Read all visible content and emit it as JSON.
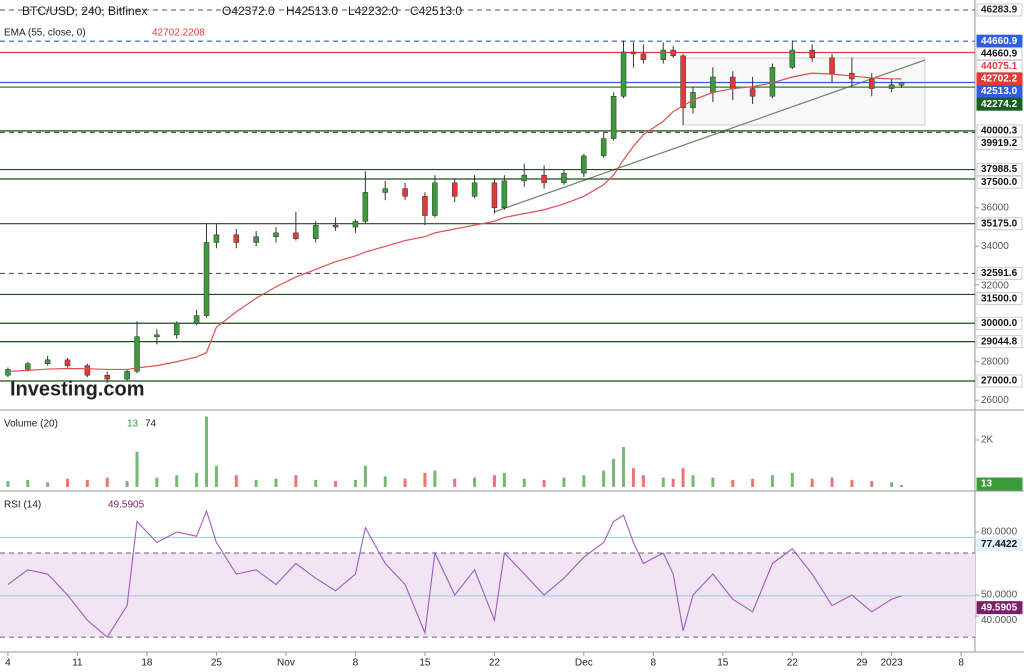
{
  "chart_data": {
    "type": "candlestick",
    "title": "BTC/USD, 240, Bitfinex",
    "ohlc_labels": [
      "O42372.0",
      "H42513.0",
      "L42232.0",
      "C42513.0"
    ],
    "ema_label": "EMA (55, close, 0)",
    "ema_value": "42702.2208",
    "watermark": "Investing.com",
    "x": [
      0,
      2,
      4,
      6,
      8,
      10,
      12,
      13,
      15,
      17,
      19,
      20,
      21,
      23,
      25,
      27,
      29,
      31,
      33,
      35,
      36,
      38,
      40,
      42,
      43,
      45,
      47,
      49,
      50,
      52,
      54,
      56,
      58,
      60,
      61,
      62,
      63,
      64,
      66,
      67,
      68,
      69,
      71,
      73,
      75,
      77,
      79,
      81,
      83,
      85,
      87,
      89,
      90
    ],
    "open": [
      27300,
      27600,
      27900,
      28100,
      27800,
      27300,
      27100,
      27500,
      29300,
      29400,
      30000,
      30400,
      34200,
      34600,
      34200,
      34500,
      34700,
      34400,
      35100,
      35000,
      35300,
      36800,
      37000,
      36600,
      35600,
      37300,
      36600,
      37300,
      36000,
      37400,
      37700,
      37300,
      37800,
      38700,
      39600,
      41800,
      44100,
      44000,
      43700,
      44200,
      43900,
      41200,
      42000,
      42800,
      42200,
      41800,
      43300,
      44200,
      43800,
      43000,
      42700,
      42200,
      42372
    ],
    "high": [
      27700,
      28000,
      28300,
      28200,
      27900,
      27500,
      27600,
      30100,
      29700,
      30100,
      30700,
      35200,
      35200,
      34900,
      34800,
      35000,
      35800,
      35300,
      35500,
      35400,
      37900,
      37400,
      37300,
      36800,
      37700,
      37500,
      37700,
      37500,
      37700,
      38300,
      38200,
      38000,
      38800,
      39900,
      42000,
      44700,
      44600,
      44500,
      44600,
      44400,
      44000,
      42300,
      43300,
      43100,
      42800,
      43500,
      44700,
      44500,
      44000,
      43800,
      43000,
      42700,
      42513
    ],
    "low": [
      27200,
      27500,
      27800,
      27700,
      27200,
      26900,
      27000,
      27400,
      28900,
      29200,
      29900,
      30300,
      33900,
      33900,
      34000,
      34200,
      34300,
      34200,
      34800,
      34700,
      35200,
      36400,
      36400,
      35100,
      35500,
      36300,
      36500,
      35700,
      35900,
      37100,
      37000,
      37200,
      37600,
      38600,
      39500,
      41700,
      43300,
      43500,
      43500,
      43800,
      40300,
      40900,
      41500,
      41600,
      41400,
      41700,
      43200,
      43600,
      42500,
      42300,
      41800,
      42000,
      42232
    ],
    "close": [
      27600,
      27900,
      28100,
      27800,
      27300,
      27100,
      27500,
      29300,
      29400,
      30000,
      30400,
      34200,
      34600,
      34200,
      34500,
      34700,
      34400,
      35100,
      35000,
      35300,
      36800,
      37000,
      36600,
      35600,
      37300,
      36600,
      37300,
      36000,
      37400,
      37700,
      37300,
      37800,
      38700,
      39600,
      41800,
      44100,
      44000,
      43700,
      44200,
      43900,
      41200,
      42000,
      42800,
      42200,
      41800,
      43300,
      44200,
      43800,
      43000,
      42700,
      42200,
      42400,
      42513
    ],
    "ema": [
      27500,
      27550,
      27620,
      27650,
      27640,
      27600,
      27600,
      27680,
      27800,
      28000,
      28250,
      28480,
      29800,
      30600,
      31300,
      31900,
      32400,
      32800,
      33200,
      33500,
      33700,
      34000,
      34300,
      34500,
      34700,
      34900,
      35100,
      35300,
      35500,
      35700,
      35900,
      36200,
      36600,
      37200,
      37700,
      38500,
      39200,
      39800,
      40500,
      41000,
      41300,
      41600,
      42000,
      42200,
      42300,
      42500,
      42800,
      43000,
      42950,
      42850,
      42750,
      42700,
      42702
    ],
    "up_color": "#3b9b3b",
    "down_color": "#e23a3a",
    "ema_color": "#e05050",
    "xlim": [
      -0.8,
      97.4
    ],
    "xticks": [
      {
        "value": 0,
        "label": "4"
      },
      {
        "value": 7,
        "label": "11"
      },
      {
        "value": 14,
        "label": "18"
      },
      {
        "value": 21,
        "label": "25"
      },
      {
        "value": 28,
        "label": "Nov"
      },
      {
        "value": 35,
        "label": "8"
      },
      {
        "value": 42,
        "label": "15"
      },
      {
        "value": 49,
        "label": "22"
      },
      {
        "value": 58,
        "label": "Dec"
      },
      {
        "value": 65,
        "label": "8"
      },
      {
        "value": 72,
        "label": "15"
      },
      {
        "value": 79,
        "label": "22"
      },
      {
        "value": 86,
        "label": "29"
      },
      {
        "value": 89,
        "label": "2023"
      },
      {
        "value": 96,
        "label": "8"
      }
    ],
    "ylim": [
      25493,
      46802
    ],
    "yticks": [
      36000,
      34000,
      32000,
      28000,
      26000
    ],
    "levels": [
      {
        "value": 46283.9,
        "label": "46283.9",
        "color": "#777",
        "dash": true,
        "line": true,
        "bg": "#fff",
        "fg": "#222"
      },
      {
        "value": 44660.9,
        "label": "44660.9",
        "color": "#2f5fe0",
        "dash": true,
        "line": true,
        "bg": "#2f5fe0",
        "fg": "#fff"
      },
      {
        "value": 44660.9,
        "label": "44660.9",
        "color": "#222",
        "dash": false,
        "line": false,
        "bg": "#fff",
        "fg": "#111"
      },
      {
        "value": 44075.1,
        "label": "44075.1",
        "color": "#e23a3a",
        "dash": false,
        "line": true,
        "bg": "#fff",
        "fg": "#e23a3a"
      },
      {
        "value": 42702.2,
        "label": "42702.2",
        "color": "#e05050",
        "dash": false,
        "line": false,
        "bg": "#e23a3a",
        "fg": "#fff"
      },
      {
        "value": 42513.0,
        "label": "42513.0",
        "color": "#2f5fe0",
        "dash": false,
        "line": true,
        "bg": "#2f5fe0",
        "fg": "#fff"
      },
      {
        "value": 42274.2,
        "label": "42274.2",
        "color": "#2e7d32",
        "dash": false,
        "line": true,
        "bg": "#1b5e20",
        "fg": "#fff"
      },
      {
        "value": 40000.3,
        "label": "40000.3",
        "color": "#1b4d1b",
        "dash": false,
        "line": true,
        "bg": "#fff",
        "fg": "#111"
      },
      {
        "value": 39919.2,
        "label": "39919.2",
        "color": "#555",
        "dash": true,
        "line": true,
        "bg": "#fff",
        "fg": "#111"
      },
      {
        "value": 37988.5,
        "label": "37988.5",
        "color": "#1b4d1b",
        "dash": false,
        "line": true,
        "bg": "#fff",
        "fg": "#111"
      },
      {
        "value": 37500.0,
        "label": "37500.0",
        "color": "#1b4d1b",
        "dash": false,
        "line": true,
        "bg": "#fff",
        "fg": "#111"
      },
      {
        "value": 35175.0,
        "label": "35175.0",
        "color": "#1b4d1b",
        "dash": false,
        "line": true,
        "bg": "#fff",
        "fg": "#111"
      },
      {
        "value": 32591.6,
        "label": "32591.6",
        "color": "#555",
        "dash": true,
        "line": true,
        "bg": "#fff",
        "fg": "#111"
      },
      {
        "value": 31500.0,
        "label": "31500.0",
        "color": "#1b4d1b",
        "dash": false,
        "line": true,
        "bg": "#fff",
        "fg": "#111"
      },
      {
        "value": 30000.0,
        "label": "30000.0",
        "color": "#1b4d1b",
        "dash": false,
        "line": true,
        "bg": "#fff",
        "fg": "#111"
      },
      {
        "value": 29044.8,
        "label": "29044.8",
        "color": "#1b4d1b",
        "dash": false,
        "line": true,
        "bg": "#fff",
        "fg": "#111"
      },
      {
        "value": 27000.0,
        "label": "27000.0",
        "color": "#1b4d1b",
        "dash": false,
        "line": true,
        "bg": "#fff",
        "fg": "#111"
      }
    ],
    "volume": {
      "title": "Volume (20)",
      "up_label": "13",
      "down_label": "74",
      "values": [
        250,
        300,
        200,
        350,
        300,
        400,
        250,
        1500,
        400,
        500,
        600,
        3000,
        900,
        500,
        300,
        350,
        500,
        300,
        250,
        300,
        900,
        450,
        350,
        600,
        700,
        350,
        400,
        500,
        600,
        350,
        300,
        400,
        500,
        700,
        1200,
        1700,
        800,
        500,
        400,
        350,
        800,
        500,
        400,
        300,
        350,
        500,
        600,
        350,
        400,
        300,
        250,
        200,
        87
      ],
      "ylim": [
        -130,
        3150
      ],
      "yticks": [
        {
          "value": 2000,
          "label": "2K"
        }
      ],
      "badges": [
        {
          "value": 74,
          "label": "74",
          "bg": "#000",
          "fg": "#fff"
        },
        {
          "value": 13,
          "label": "13",
          "bg": "#3b9b3b",
          "fg": "#fff"
        }
      ]
    },
    "rsi": {
      "title": "RSI (14)",
      "value_label": "49.5905",
      "color": "#a05cc0",
      "values": [
        55,
        62,
        60,
        50,
        38,
        30,
        45,
        85,
        75,
        80,
        78,
        90,
        75,
        60,
        62,
        55,
        65,
        58,
        52,
        60,
        82,
        65,
        55,
        32,
        70,
        50,
        62,
        38,
        70,
        60,
        50,
        58,
        68,
        75,
        85,
        88,
        75,
        65,
        70,
        60,
        33,
        50,
        60,
        48,
        42,
        65,
        72,
        60,
        45,
        50,
        42,
        48,
        49.6
      ],
      "ylim": [
        22.9,
        97.6
      ],
      "band": [
        30,
        70
      ],
      "yticks": [
        {
          "value": 80,
          "label": "80.0000"
        },
        {
          "value": 50,
          "label": "50.0000"
        },
        {
          "value": 40,
          "label": "40.0000"
        }
      ],
      "badges": [
        {
          "value": 77.4422,
          "label": "77.4422",
          "bg": "#dff3f7",
          "fg": "#111"
        },
        {
          "value": 49.5905,
          "label": "49.5905",
          "bg": "#7b1f6b",
          "fg": "#fff"
        }
      ]
    }
  }
}
